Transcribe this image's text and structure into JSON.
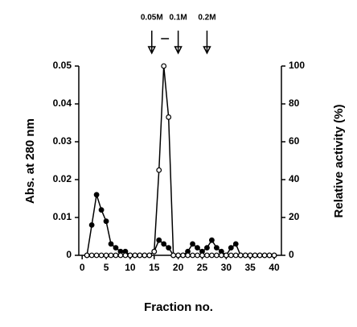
{
  "chart_data": {
    "type": "line",
    "x_label": "Fraction no.",
    "y_label": "Abs. at 280 nm",
    "y2_label": "Relative activity (%)",
    "x": [
      1,
      2,
      3,
      4,
      5,
      6,
      7,
      8,
      9,
      10,
      11,
      12,
      13,
      14,
      15,
      16,
      17,
      18,
      19,
      20,
      21,
      22,
      23,
      24,
      25,
      26,
      27,
      28,
      29,
      30,
      31,
      32,
      33,
      34,
      35,
      36,
      37,
      38,
      39,
      40
    ],
    "series": [
      {
        "name": "Abs. at 280 nm",
        "color": "#000000",
        "marker": "filled",
        "values": [
          0,
          0.008,
          0.016,
          0.012,
          0.009,
          0.003,
          0.002,
          0.001,
          0.001,
          0,
          0,
          0,
          0,
          0,
          0.001,
          0.004,
          0.003,
          0.002,
          0,
          0,
          0,
          0.001,
          0.003,
          0.002,
          0.001,
          0.002,
          0.004,
          0.002,
          0.001,
          0,
          0.002,
          0.003,
          0,
          0,
          0,
          0,
          0,
          0,
          0,
          0
        ]
      },
      {
        "name": "Relative activity (%)",
        "color": "#000000",
        "marker": "open",
        "axis": "y2",
        "values": [
          0,
          0,
          0,
          0,
          0,
          0,
          0,
          0,
          0,
          0,
          0,
          0,
          0,
          0,
          2,
          45,
          100,
          73,
          0,
          0,
          0,
          0,
          0,
          0,
          0,
          0,
          0,
          0,
          0,
          0,
          0,
          0,
          0,
          0,
          0,
          0,
          0,
          0,
          0,
          0
        ]
      }
    ],
    "xlim": [
      -0.7,
      41.5
    ],
    "xticks": [
      0,
      5,
      10,
      15,
      20,
      25,
      30,
      35,
      40
    ],
    "ylim": [
      0,
      0.05
    ],
    "yticks": [
      0,
      0.01,
      0.02,
      0.03,
      0.04,
      0.05
    ],
    "y2lim": [
      0,
      100
    ],
    "y2ticks": [
      0,
      20,
      40,
      60,
      80,
      100
    ],
    "annotations": [
      {
        "label": "0.05M",
        "x": 14.5
      },
      {
        "label": "0.1M",
        "x": 20
      },
      {
        "label": "0.2M",
        "x": 26
      }
    ]
  }
}
